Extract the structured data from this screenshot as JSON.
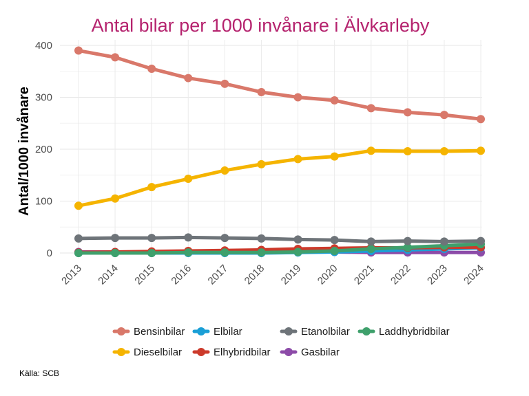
{
  "chart_data": {
    "type": "line",
    "title": "Antal bilar per 1000 invånare i Älvkarleby",
    "ylabel": "Antal/1000 invånare",
    "xlabel": "",
    "ylim": [
      0,
      400
    ],
    "yticks": [
      0,
      100,
      200,
      300,
      400
    ],
    "categories": [
      "2013",
      "2014",
      "2015",
      "2016",
      "2017",
      "2018",
      "2019",
      "2020",
      "2021",
      "2022",
      "2023",
      "2024"
    ],
    "grid": true,
    "legend_position": "bottom",
    "title_color": "#b5236e",
    "series": [
      {
        "name": "Bensinbilar",
        "color": "#d9786a",
        "values": [
          390,
          377,
          355,
          337,
          326,
          310,
          300,
          294,
          279,
          271,
          266,
          258
        ]
      },
      {
        "name": "Dieselbilar",
        "color": "#f5b400",
        "values": [
          91,
          105,
          127,
          143,
          159,
          171,
          181,
          186,
          197,
          196,
          196,
          197
        ]
      },
      {
        "name": "Elbilar",
        "color": "#1a9fd6",
        "values": [
          0,
          0,
          0,
          0,
          0,
          0,
          1,
          2,
          4,
          6,
          8,
          10
        ]
      },
      {
        "name": "Elhybridbilar",
        "color": "#cc3a2b",
        "values": [
          1,
          2,
          3,
          4,
          5,
          6,
          8,
          9,
          10,
          10,
          11,
          11
        ]
      },
      {
        "name": "Etanolbilar",
        "color": "#6e7479",
        "values": [
          28,
          29,
          29,
          30,
          29,
          28,
          26,
          25,
          22,
          23,
          22,
          23
        ]
      },
      {
        "name": "Gasbilar",
        "color": "#8c4ba8",
        "values": [
          2,
          2,
          2,
          2,
          2,
          2,
          2,
          2,
          1,
          1,
          1,
          1
        ]
      },
      {
        "name": "Laddhybridbilar",
        "color": "#3fa06c",
        "values": [
          0,
          0,
          0,
          1,
          1,
          1,
          2,
          4,
          8,
          11,
          14,
          17
        ]
      }
    ],
    "legend_order": [
      "Bensinbilar",
      "Elbilar",
      "Etanolbilar",
      "Laddhybridbilar",
      "Dieselbilar",
      "Elhybridbilar",
      "Gasbilar"
    ],
    "source": "Källa: SCB"
  }
}
